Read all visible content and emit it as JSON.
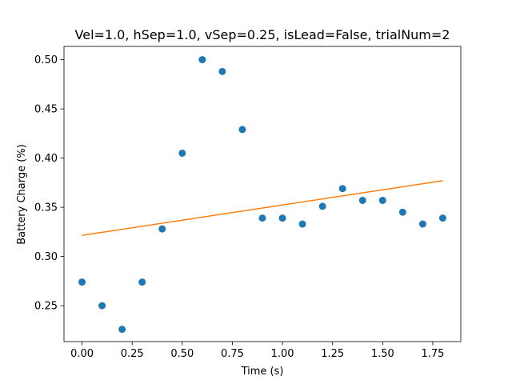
{
  "chart_data": {
    "type": "scatter",
    "title": "Vel=1.0, hSep=1.0, vSep=0.25, isLead=False, trialNum=2",
    "xlabel": "Time (s)",
    "ylabel": "Battery Charge (%)",
    "xlim": [
      -0.09,
      1.89
    ],
    "ylim": [
      0.2135,
      0.5135
    ],
    "x_ticks": [
      0.0,
      0.25,
      0.5,
      0.75,
      1.0,
      1.25,
      1.5,
      1.75
    ],
    "x_tick_labels": [
      "0.00",
      "0.25",
      "0.50",
      "0.75",
      "1.00",
      "1.25",
      "1.50",
      "1.75"
    ],
    "y_ticks": [
      0.25,
      0.3,
      0.35,
      0.4,
      0.45,
      0.5
    ],
    "y_tick_labels": [
      "0.25",
      "0.30",
      "0.35",
      "0.40",
      "0.45",
      "0.50"
    ],
    "grid": false,
    "series": [
      {
        "kind": "scatter",
        "color": "#1f77b4",
        "x": [
          0.0,
          0.1,
          0.2,
          0.3,
          0.4,
          0.5,
          0.6,
          0.7,
          0.8,
          0.9,
          1.0,
          1.1,
          1.2,
          1.3,
          1.4,
          1.5,
          1.6,
          1.7,
          1.8
        ],
        "y": [
          0.274,
          0.25,
          0.226,
          0.274,
          0.328,
          0.405,
          0.5,
          0.488,
          0.429,
          0.339,
          0.339,
          0.333,
          0.351,
          0.369,
          0.357,
          0.357,
          0.345,
          0.333,
          0.339
        ]
      },
      {
        "kind": "line",
        "color": "#ff7f0e",
        "x": [
          0.0,
          1.8
        ],
        "y": [
          0.3215,
          0.377
        ]
      }
    ]
  }
}
